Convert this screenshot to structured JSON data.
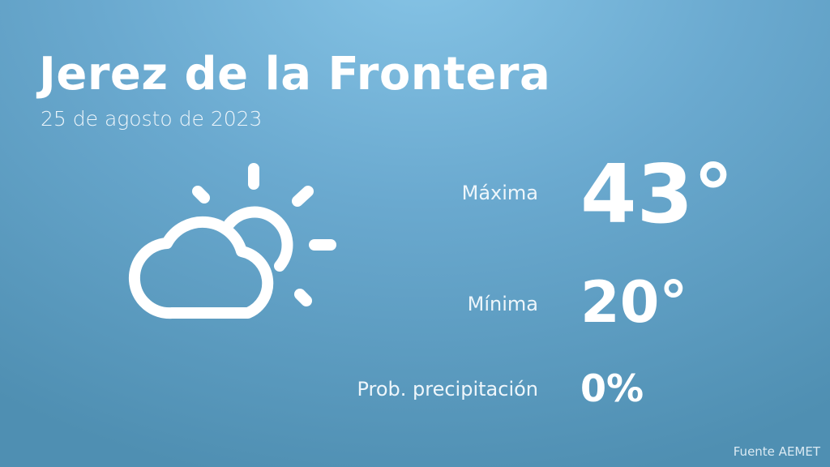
{
  "city": "Jerez de la Frontera",
  "date": "25 de agosto de 2023",
  "icon": "partly-cloudy-icon",
  "max": {
    "label": "Máxima",
    "value": "43°"
  },
  "min": {
    "label": "Mínima",
    "value": "20°"
  },
  "precip": {
    "label": "Prob. precipitación",
    "value": "0%"
  },
  "source": "Fuente AEMET",
  "colors": {
    "background_top": "#86c4e6",
    "background_bottom": "#4f8fb2",
    "text": "#ffffff"
  }
}
